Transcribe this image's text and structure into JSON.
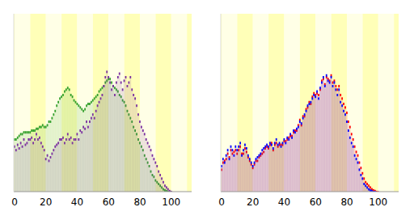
{
  "chart_data": [
    {
      "type": "bar",
      "x": [
        0,
        1,
        2,
        3,
        4,
        5,
        6,
        7,
        8,
        9,
        10,
        11,
        12,
        13,
        14,
        15,
        16,
        17,
        18,
        19,
        20,
        21,
        22,
        23,
        24,
        25,
        26,
        27,
        28,
        29,
        30,
        31,
        32,
        33,
        34,
        35,
        36,
        37,
        38,
        39,
        40,
        41,
        42,
        43,
        44,
        45,
        46,
        47,
        48,
        49,
        50,
        51,
        52,
        53,
        54,
        55,
        56,
        57,
        58,
        59,
        60,
        61,
        62,
        63,
        64,
        65,
        66,
        67,
        68,
        69,
        70,
        71,
        72,
        73,
        74,
        75,
        76,
        77,
        78,
        79,
        80,
        81,
        82,
        83,
        84,
        85,
        86,
        87,
        88,
        89,
        90,
        91,
        92,
        93,
        94,
        95,
        96,
        97,
        98,
        99,
        100
      ],
      "xlim": [
        -0.5,
        113
      ],
      "xticks": [
        0,
        20,
        40,
        60,
        80,
        100
      ],
      "ylim": [
        0,
        100
      ],
      "tick_labels": "x",
      "series": [
        {
          "color": "#33a02c",
          "values": [
            30,
            30,
            31,
            32,
            33,
            33,
            34,
            34,
            34,
            34,
            34,
            35,
            35,
            35,
            36,
            36,
            37,
            37,
            38,
            37,
            37,
            38,
            40,
            40,
            42,
            44,
            46,
            49,
            51,
            53,
            54,
            55,
            57,
            58,
            59,
            58,
            55,
            54,
            52,
            51,
            50,
            49,
            48,
            47,
            46,
            47,
            49,
            50,
            50,
            51,
            52,
            53,
            54,
            55,
            57,
            58,
            59,
            60,
            62,
            63,
            64,
            64,
            62,
            60,
            59,
            58,
            57,
            55,
            54,
            52,
            51,
            49,
            46,
            44,
            42,
            40,
            37,
            35,
            33,
            30,
            28,
            26,
            24,
            21,
            19,
            17,
            15,
            12,
            10,
            9,
            7,
            6,
            5,
            4,
            3,
            2,
            1.4,
            1,
            0.5,
            0.5,
            0.3
          ]
        },
        {
          "color": "#7a2fa0",
          "values": [
            26,
            24,
            27,
            25,
            28,
            26,
            30,
            27,
            28,
            30,
            30,
            31,
            28,
            30,
            33,
            30,
            31,
            28,
            26,
            24,
            19,
            21,
            18,
            20,
            22,
            24,
            26,
            27,
            28,
            30,
            30,
            31,
            28,
            30,
            33,
            30,
            31,
            28,
            30,
            30,
            33,
            30,
            35,
            34,
            37,
            36,
            40,
            37,
            40,
            42,
            44,
            42,
            46,
            49,
            51,
            53,
            55,
            60,
            65,
            68,
            65,
            62,
            58,
            60,
            55,
            62,
            65,
            67,
            62,
            58,
            63,
            65,
            60,
            62,
            65,
            58,
            55,
            53,
            49,
            44,
            40,
            37,
            35,
            33,
            30,
            28,
            26,
            24,
            21,
            19,
            17,
            15,
            12,
            10,
            8,
            6,
            4,
            3,
            2,
            1,
            0.5
          ]
        }
      ]
    },
    {
      "type": "bar",
      "x": [
        0,
        1,
        2,
        3,
        4,
        5,
        6,
        7,
        8,
        9,
        10,
        11,
        12,
        13,
        14,
        15,
        16,
        17,
        18,
        19,
        20,
        21,
        22,
        23,
        24,
        25,
        26,
        27,
        28,
        29,
        30,
        31,
        32,
        33,
        34,
        35,
        36,
        37,
        38,
        39,
        40,
        41,
        42,
        43,
        44,
        45,
        46,
        47,
        48,
        49,
        50,
        51,
        52,
        53,
        54,
        55,
        56,
        57,
        58,
        59,
        60,
        61,
        62,
        63,
        64,
        65,
        66,
        67,
        68,
        69,
        70,
        71,
        72,
        73,
        74,
        75,
        76,
        77,
        78,
        79,
        80,
        81,
        82,
        83,
        84,
        85,
        86,
        87,
        88,
        89,
        90,
        91,
        92,
        93,
        94,
        95,
        96,
        97,
        98,
        99,
        100
      ],
      "xlim": [
        -0.5,
        113
      ],
      "xticks": [
        0,
        20,
        40,
        60,
        80,
        100
      ],
      "ylim": [
        0,
        100
      ],
      "tick_labels": "x",
      "series": [
        {
          "color": "#ff0000",
          "values": [
            13,
            17,
            18,
            19,
            22,
            20,
            24,
            22,
            23,
            24,
            22,
            24,
            26,
            22,
            22,
            25,
            23,
            20,
            18,
            16,
            14,
            16,
            18,
            18,
            20,
            21,
            22,
            23,
            25,
            26,
            25,
            27,
            28,
            24,
            27,
            28,
            26,
            27,
            27,
            27,
            29,
            29,
            30,
            31,
            32,
            32,
            34,
            35,
            35,
            38,
            41,
            38,
            43,
            43,
            47,
            48,
            51,
            50,
            54,
            56,
            55,
            56,
            55,
            58,
            63,
            64,
            61,
            65,
            64,
            63,
            66,
            62,
            63,
            60,
            58,
            60,
            55,
            53,
            50,
            48,
            45,
            40,
            37,
            33,
            30,
            26,
            23,
            21,
            17,
            14,
            11,
            8,
            6,
            5,
            4,
            3,
            2,
            1.4,
            1,
            0.5,
            0.3
          ]
        },
        {
          "color": "#0000ff",
          "values": [
            15,
            19,
            17,
            21,
            24,
            19,
            26,
            24,
            21,
            26,
            24,
            26,
            28,
            21,
            24,
            27,
            25,
            21,
            19,
            17,
            15,
            17,
            19,
            20,
            21,
            22,
            24,
            25,
            26,
            27,
            26,
            28,
            27,
            25,
            28,
            30,
            27,
            28,
            26,
            28,
            30,
            28,
            31,
            30,
            33,
            31,
            35,
            34,
            36,
            37,
            40,
            39,
            42,
            44,
            46,
            49,
            50,
            51,
            53,
            55,
            54,
            57,
            53,
            59,
            62,
            65,
            60,
            66,
            63,
            62,
            65,
            60,
            62,
            58,
            55,
            58,
            51,
            49,
            46,
            44,
            40,
            35,
            31,
            28,
            26,
            21,
            19,
            17,
            13,
            10,
            8,
            5,
            4,
            3,
            2,
            1.4,
            1,
            0.5,
            0.5,
            0,
            0
          ]
        }
      ]
    }
  ]
}
